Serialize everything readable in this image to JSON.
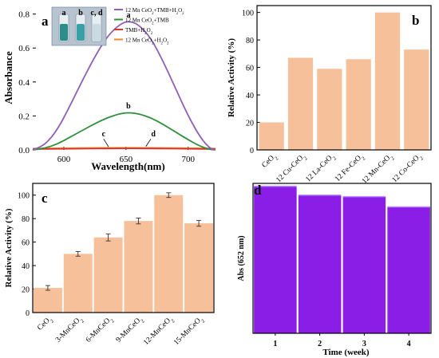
{
  "chart_data": [
    {
      "panel": "a",
      "type": "line",
      "xlabel": "Wavelength(nm)",
      "ylabel": "Absorbance",
      "xlim": [
        575,
        722
      ],
      "ylim": [
        0,
        0.85
      ],
      "xticks": [
        600,
        650,
        700
      ],
      "yticks": [
        0.0,
        0.2,
        0.4,
        0.6,
        0.8
      ],
      "ytick_labels": [
        "0.0",
        "0.2",
        "0.4",
        "0.6",
        "0.8"
      ],
      "legend_position": "top-right",
      "series": [
        {
          "name": "12 Mn CeO₂+TMB+H₂O₂",
          "color": "#8f5fb8",
          "label": "a",
          "x": [
            575,
            585,
            595,
            605,
            615,
            625,
            635,
            645,
            652,
            660,
            670,
            680,
            690,
            700,
            710,
            718,
            722
          ],
          "y": [
            0.0,
            0.03,
            0.12,
            0.26,
            0.41,
            0.55,
            0.67,
            0.74,
            0.76,
            0.74,
            0.66,
            0.52,
            0.36,
            0.2,
            0.07,
            0.005,
            0.0
          ]
        },
        {
          "name": "12 Mn CeO₂+TMB",
          "color": "#2f8f3a",
          "label": "b",
          "x": [
            575,
            585,
            595,
            605,
            615,
            625,
            635,
            645,
            652,
            660,
            670,
            680,
            690,
            700,
            710,
            718,
            722
          ],
          "y": [
            0.0,
            0.01,
            0.035,
            0.075,
            0.115,
            0.155,
            0.19,
            0.213,
            0.22,
            0.213,
            0.19,
            0.15,
            0.105,
            0.06,
            0.02,
            0.002,
            0.0
          ]
        },
        {
          "name": "TMB+H₂O₂",
          "color": "#e0302a",
          "label": "c",
          "x": [
            575,
            600,
            625,
            652,
            680,
            705,
            722
          ],
          "y": [
            0.005,
            0.006,
            0.008,
            0.009,
            0.008,
            0.006,
            0.005
          ]
        },
        {
          "name": "12 Mn CeO₂+H₂O₂",
          "color": "#f08a2a",
          "label": "d",
          "x": [
            575,
            600,
            625,
            652,
            680,
            705,
            722
          ],
          "y": [
            0.008,
            0.01,
            0.012,
            0.013,
            0.012,
            0.01,
            0.008
          ]
        }
      ],
      "curve_labels": [
        "a",
        "b",
        "c",
        "d"
      ],
      "inset_labels": [
        "a",
        "b",
        "c, d"
      ]
    },
    {
      "panel": "b",
      "type": "bar",
      "ylabel": "Relative Activity (%)",
      "ylim": [
        0,
        105
      ],
      "yticks": [
        0,
        20,
        40,
        60,
        80,
        100
      ],
      "categories": [
        "CeO₂",
        "12 Cu-CeO₂",
        "12 La-CeO₂",
        "12 Fe-CeO₂",
        "12 Mn-CeO₂",
        "12 Co-CeO₂"
      ],
      "values": [
        20,
        67,
        59,
        66,
        100,
        73
      ],
      "color": "#f6c09a"
    },
    {
      "panel": "c",
      "type": "bar",
      "ylabel": "Relative Activity (%)",
      "ylim": [
        0,
        110
      ],
      "yticks": [
        0,
        20,
        40,
        60,
        80,
        100
      ],
      "categories": [
        "CeO₂",
        "3-MnCeO₂",
        "6-MnCeO₂",
        "9-MnCeO₂",
        "12-MnCeO₂",
        "15-MnCeO₂"
      ],
      "values": [
        21,
        50,
        64,
        78,
        100,
        76
      ],
      "errors": [
        2,
        2,
        3,
        2.5,
        2,
        2.5
      ],
      "color": "#f6c09a"
    },
    {
      "panel": "d",
      "type": "bar",
      "xlabel": "Time (week)",
      "ylabel": "Abs (652 nm)",
      "ylim": [
        0,
        1.02
      ],
      "categories": [
        "1",
        "2",
        "3",
        "4"
      ],
      "values": [
        1.0,
        0.94,
        0.93,
        0.86
      ],
      "color": "#8a1ee6"
    }
  ]
}
